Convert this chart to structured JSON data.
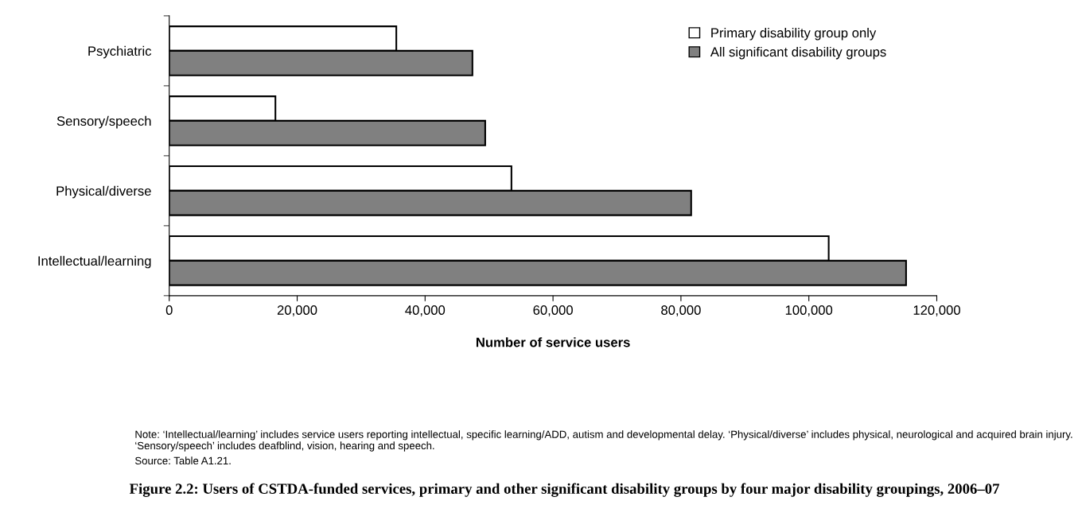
{
  "chart_data": {
    "type": "bar",
    "orientation": "horizontal",
    "title": "Figure 2.2: Users of CSTDA-funded services, primary and other significant disability groups by four major disability groupings, 2006–07",
    "xlabel": "Number of service users",
    "categories": [
      "Psychiatric",
      "Sensory/speech",
      "Physical/diverse",
      "Intellectual/learning"
    ],
    "series": [
      {
        "name": "Primary disability group only",
        "color": "#ffffff",
        "values": [
          35500,
          16600,
          53500,
          103100
        ]
      },
      {
        "name": "All significant disability groups",
        "color": "#808080",
        "values": [
          47400,
          49400,
          81600,
          115200
        ]
      }
    ],
    "xlim": [
      0,
      120000
    ],
    "xticks": [
      {
        "value": 0,
        "label": "0"
      },
      {
        "value": 20000,
        "label": "20,000"
      },
      {
        "value": 40000,
        "label": "40,000"
      },
      {
        "value": 60000,
        "label": "60,000"
      },
      {
        "value": 80000,
        "label": "80,000"
      },
      {
        "value": 100000,
        "label": "100,000"
      },
      {
        "value": 120000,
        "label": "120,000"
      }
    ],
    "grid": false,
    "legend": "top right",
    "annotations": [
      "Note: ‘Intellectual/learning’ includes service users reporting intellectual, specific learning/ADD, autism and developmental delay. ‘Physical/diverse’ includes physical, neurological and acquired brain injury. ‘Sensory/speech’ includes deafblind, vision, hearing and speech.",
      "Source: Table A1.21."
    ]
  }
}
